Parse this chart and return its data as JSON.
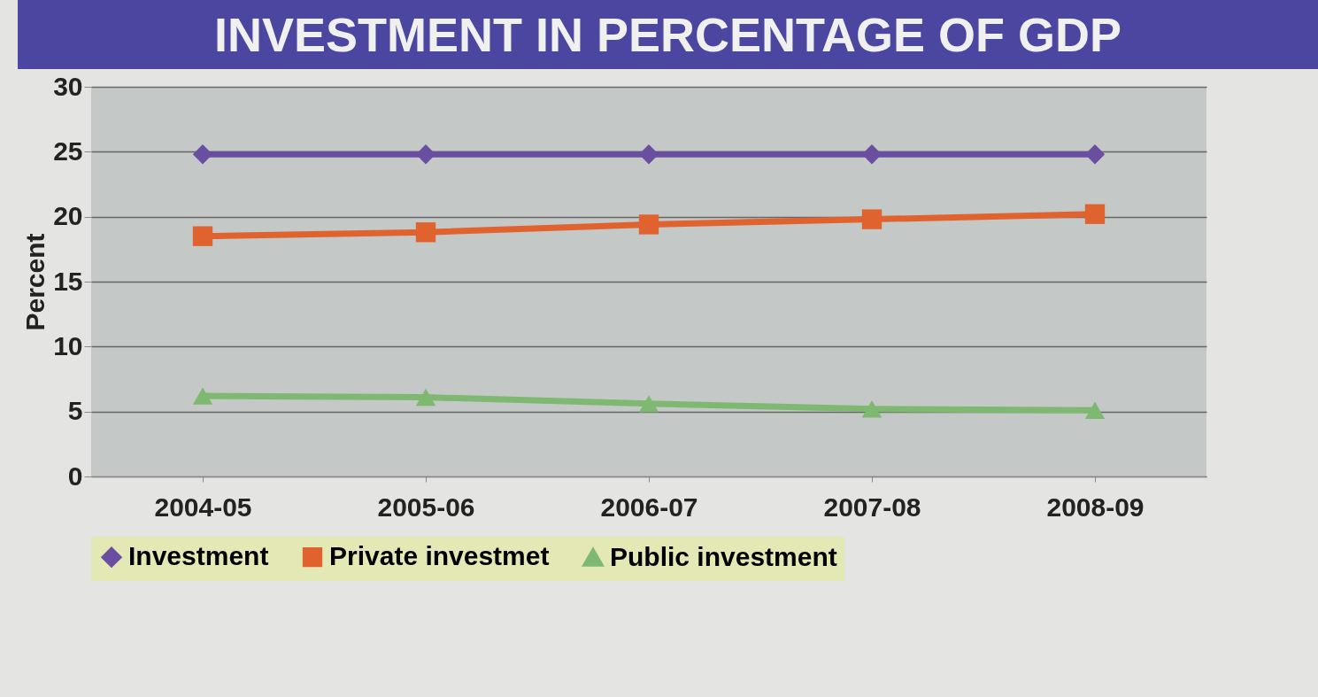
{
  "chart_data": {
    "type": "line",
    "title": "INVESTMENT IN PERCENTAGE OF GDP",
    "ylabel": "Percent",
    "categories": [
      "2004-05",
      "2005-06",
      "2006-07",
      "2007-08",
      "2008-09"
    ],
    "series": [
      {
        "name": "Investment",
        "color": "#6a4fa0",
        "marker": "diamond",
        "values": [
          24.8,
          24.8,
          24.8,
          24.8,
          24.8
        ]
      },
      {
        "name": "Private investmet",
        "color": "#e0622e",
        "marker": "square",
        "values": [
          18.5,
          18.8,
          19.4,
          19.8,
          20.2
        ]
      },
      {
        "name": "Public investment",
        "color": "#7fb870",
        "marker": "triangle",
        "values": [
          6.2,
          6.1,
          5.6,
          5.2,
          5.1
        ]
      }
    ],
    "ylim": [
      0,
      30
    ],
    "yticks": [
      0,
      5,
      10,
      15,
      20,
      25,
      30
    ],
    "grid": "y",
    "legend": "bottom",
    "line_style": "solid"
  }
}
